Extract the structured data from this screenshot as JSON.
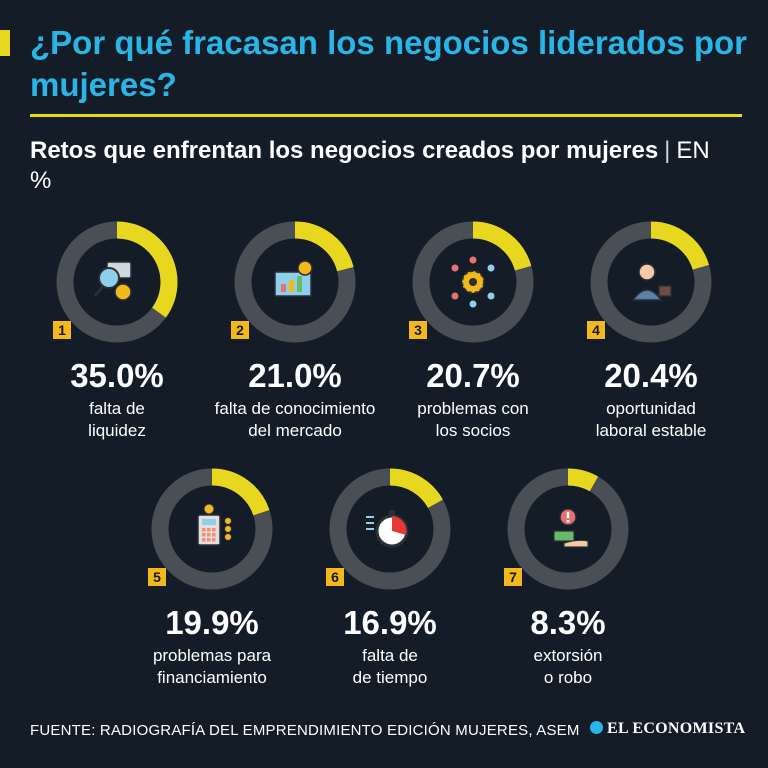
{
  "header": {
    "title": "¿Por qué fracasan los negocios liderados por mujeres?",
    "subtitle": "Retos que enfrentan los negocios creados por mujeres",
    "separator": "|",
    "unit": "EN %"
  },
  "colors": {
    "accent": "#e8d71f",
    "title": "#29b6e6",
    "ring_bg": "#4a4e55",
    "badge": "#f3b81c",
    "background": "#141c27"
  },
  "chart_data": {
    "type": "pie",
    "title": "¿Por qué fracasan los negocios liderados por mujeres?",
    "subtitle": "Retos que enfrentan los negocios creados por mujeres",
    "unit": "EN %",
    "categories": [
      "falta de liquidez",
      "falta de conocimiento del mercado",
      "problemas con los socios",
      "oportunidad laboral estable",
      "problemas para financiamiento",
      "falta de tiempo",
      "extorsión o robo"
    ],
    "values": [
      35.0,
      21.0,
      20.7,
      20.4,
      19.9,
      16.9,
      8.3
    ],
    "items": [
      {
        "rank": "1",
        "value": 35.0,
        "display": "35.0%",
        "label_lines": [
          "falta de",
          "liquidez"
        ],
        "icon": "magnifier-money-icon"
      },
      {
        "rank": "2",
        "value": 21.0,
        "display": "21.0%",
        "label_lines": [
          "falta de conocimiento",
          "del mercado"
        ],
        "icon": "market-chart-icon"
      },
      {
        "rank": "3",
        "value": 20.7,
        "display": "20.7%",
        "label_lines": [
          "problemas con",
          "los socios"
        ],
        "icon": "gear-network-icon"
      },
      {
        "rank": "4",
        "value": 20.4,
        "display": "20.4%",
        "label_lines": [
          "oportunidad",
          "laboral estable"
        ],
        "icon": "businesswoman-icon"
      },
      {
        "rank": "5",
        "value": 19.9,
        "display": "19.9%",
        "label_lines": [
          "problemas para",
          "financiamiento"
        ],
        "icon": "calculator-coins-icon"
      },
      {
        "rank": "6",
        "value": 16.9,
        "display": "16.9%",
        "label_lines": [
          "falta de",
          "de tiempo"
        ],
        "icon": "stopwatch-icon"
      },
      {
        "rank": "7",
        "value": 8.3,
        "display": "8.3%",
        "label_lines": [
          "extorsión",
          "o robo"
        ],
        "icon": "hand-money-alert-icon"
      }
    ]
  },
  "footer": {
    "source": "FUENTE: RADIOGRAFÍA DEL EMPRENDIMIENTO EDICIÓN MUJERES, ASEM",
    "brand": "EL ECONOMISTA"
  }
}
